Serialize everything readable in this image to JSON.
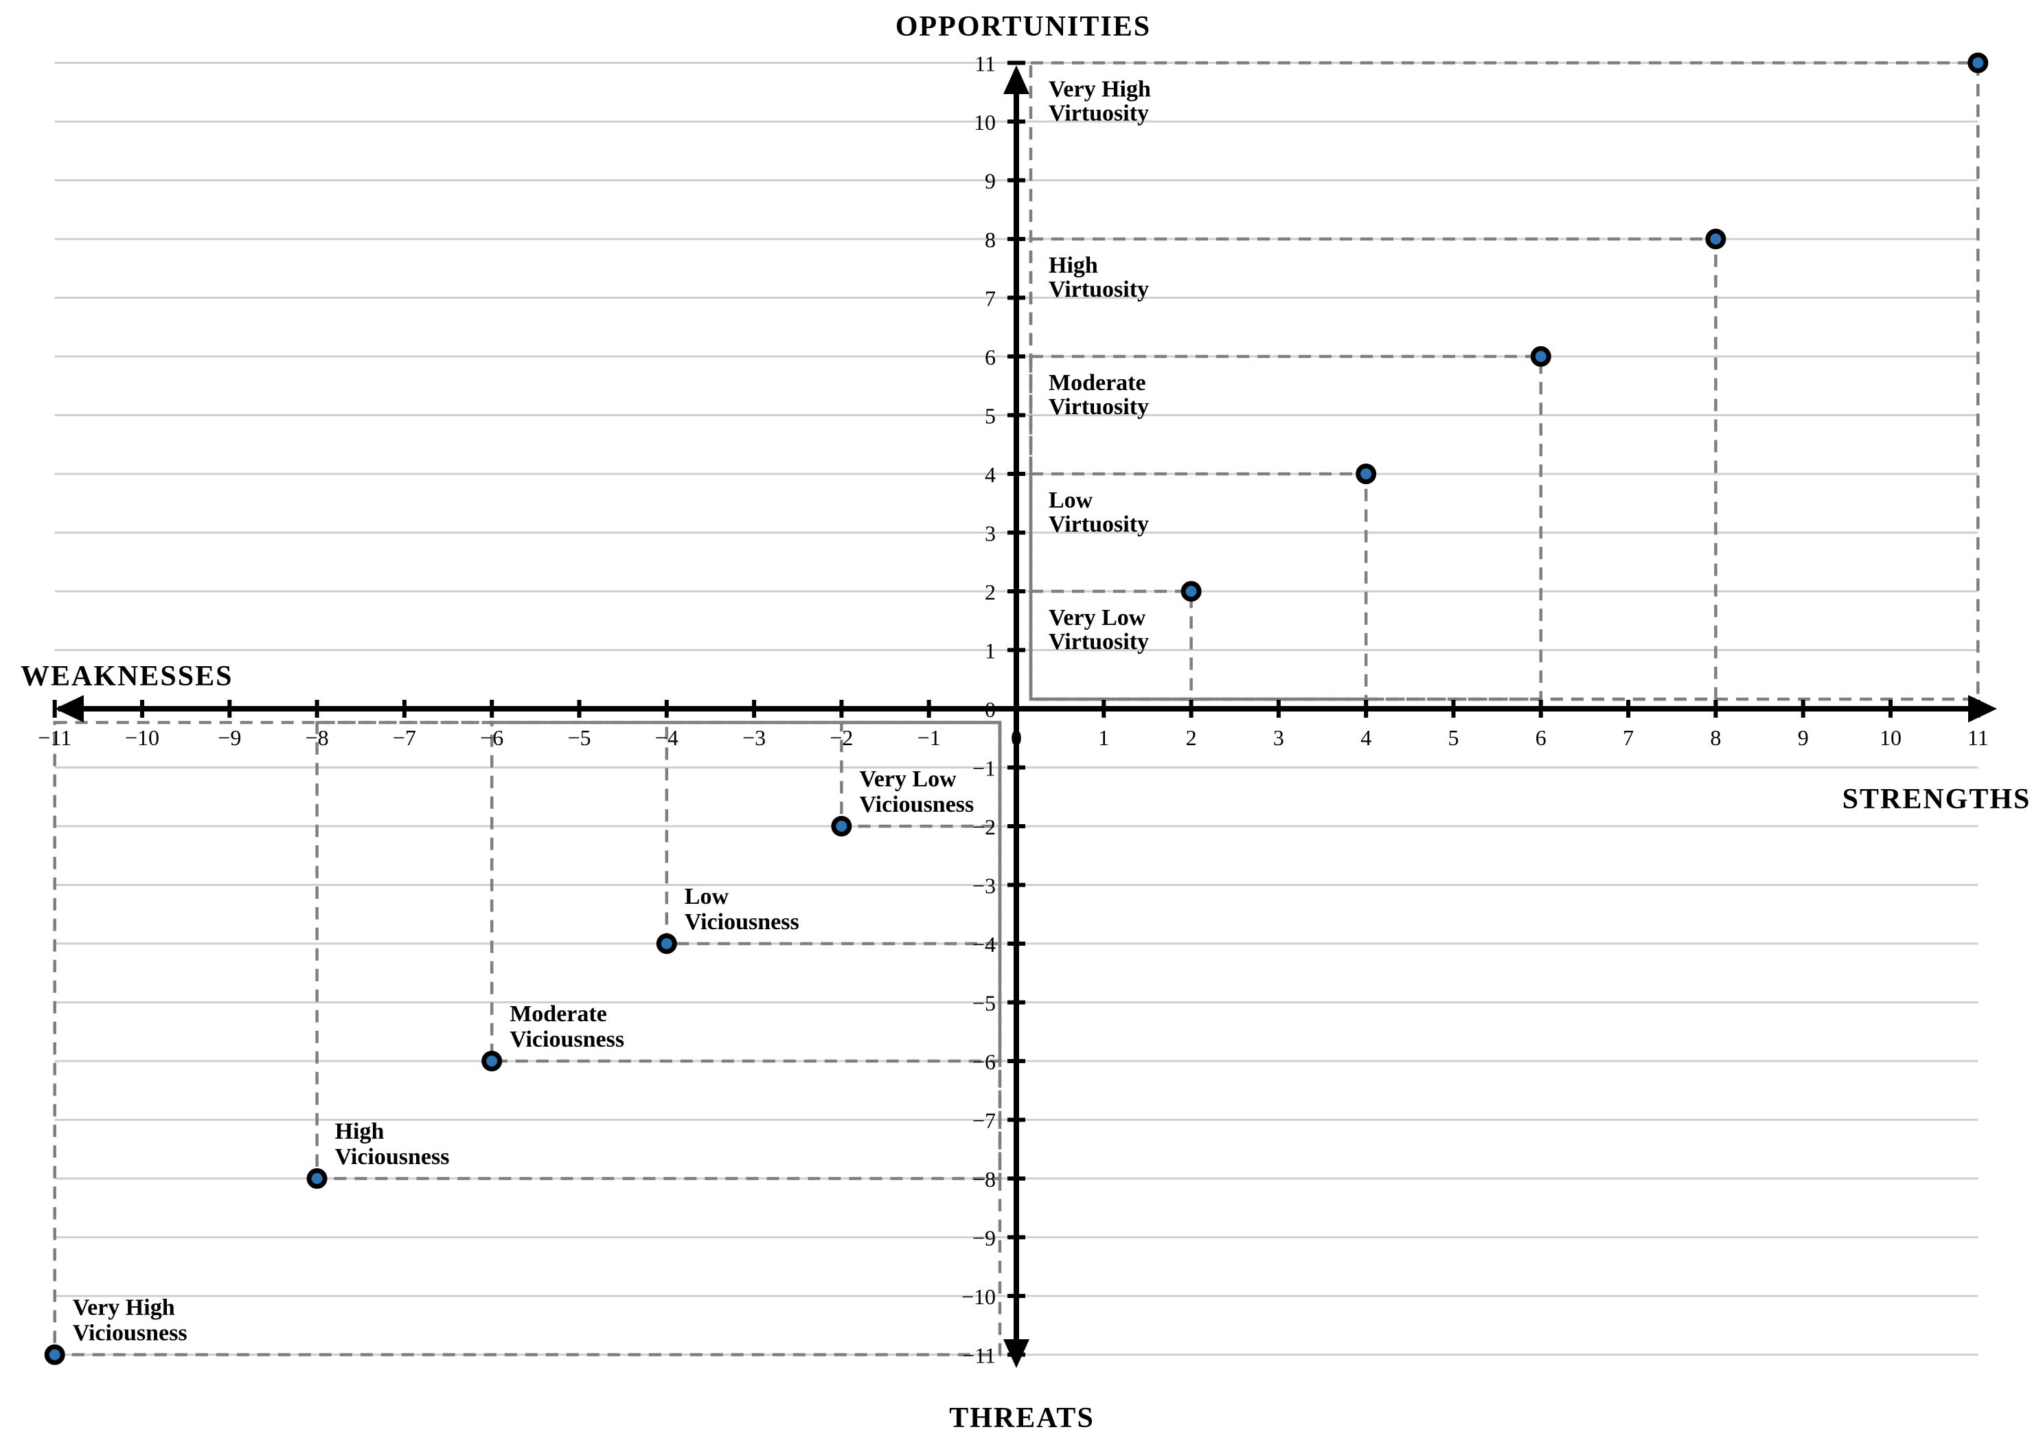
{
  "chart_data": {
    "type": "scatter",
    "axis_titles": {
      "top": "OPPORTUNITIES",
      "right": "STRENGTHS",
      "left": "WEAKNESSES",
      "bottom": "THREATS"
    },
    "xlim": [
      -11,
      11
    ],
    "ylim": [
      -11,
      11
    ],
    "grid": "horizontal-only",
    "legend": "none",
    "x_tick_values": [
      -11,
      -10,
      -9,
      -8,
      -7,
      -6,
      -5,
      -4,
      -3,
      -2,
      -1,
      0,
      1,
      2,
      3,
      4,
      5,
      6,
      7,
      8,
      9,
      10,
      11
    ],
    "x_tick_labels": [
      "−11",
      "−10",
      "−9",
      "−8",
      "−7",
      "−6",
      "−5",
      "−4",
      "−3",
      "−2",
      "−1",
      "0",
      "1",
      "2",
      "3",
      "4",
      "5",
      "6",
      "7",
      "8",
      "9",
      "10",
      "11"
    ],
    "y_tick_values": [
      -11,
      -10,
      -9,
      -8,
      -7,
      -6,
      -5,
      -4,
      -3,
      -2,
      -1,
      0,
      1,
      2,
      3,
      4,
      5,
      6,
      7,
      8,
      9,
      10,
      11
    ],
    "y_tick_labels": [
      "−11",
      "−10",
      "−9",
      "−8",
      "−7",
      "−6",
      "−5",
      "−4",
      "−3",
      "−2",
      "−1",
      "0",
      "1",
      "2",
      "3",
      "4",
      "5",
      "6",
      "7",
      "8",
      "9",
      "10",
      "11"
    ],
    "series": [
      {
        "name": "Virtuosity",
        "points": [
          {
            "x": 2,
            "y": 2,
            "label": [
              "Very Low",
              "Virtuosity"
            ]
          },
          {
            "x": 4,
            "y": 4,
            "label": [
              "Low",
              "Virtuosity"
            ]
          },
          {
            "x": 6,
            "y": 6,
            "label": [
              "Moderate",
              "Virtuosity"
            ]
          },
          {
            "x": 8,
            "y": 8,
            "label": [
              "High",
              "Virtuosity"
            ]
          },
          {
            "x": 11,
            "y": 11,
            "label": [
              "Very High",
              "Virtuosity"
            ]
          }
        ]
      },
      {
        "name": "Viciousness",
        "points": [
          {
            "x": -2,
            "y": -2,
            "label": [
              "Very Low",
              "Viciousness"
            ]
          },
          {
            "x": -4,
            "y": -4,
            "label": [
              "Low",
              "Viciousness"
            ]
          },
          {
            "x": -6,
            "y": -6,
            "label": [
              "Moderate",
              "Viciousness"
            ]
          },
          {
            "x": -8,
            "y": -8,
            "label": [
              "High",
              "Viciousness"
            ]
          },
          {
            "x": -11,
            "y": -11,
            "label": [
              "Very High",
              "Viciousness"
            ]
          }
        ]
      }
    ],
    "colors": {
      "marker_fill": "#2e74b5",
      "marker_stroke": "#000000",
      "dashed_guide": "#7f7f7f",
      "gridline": "#cfcfcf",
      "axis": "#000000",
      "text": "#000000"
    }
  }
}
